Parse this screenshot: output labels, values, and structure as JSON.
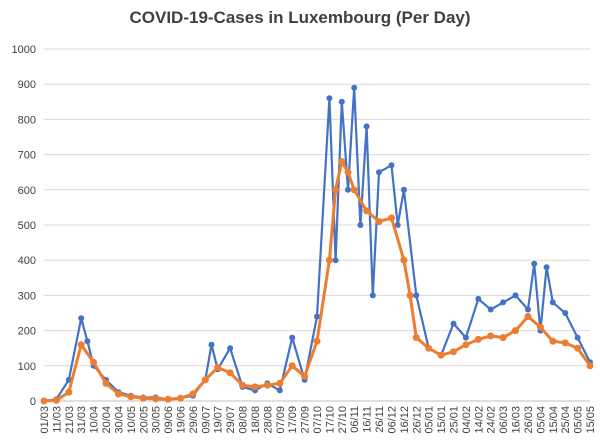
{
  "chart_data": {
    "type": "line",
    "title": "COVID-19-Cases in Luxembourg (Per Day)",
    "xlabel": "",
    "ylabel": "",
    "ylim": [
      0,
      1000
    ],
    "yticks": [
      0,
      100,
      200,
      300,
      400,
      500,
      600,
      700,
      800,
      900,
      1000
    ],
    "grid": true,
    "legend": "none",
    "x_ticks": [
      "01/03",
      "11/03",
      "21/03",
      "31/03",
      "10/04",
      "20/04",
      "30/04",
      "10/05",
      "20/05",
      "30/05",
      "09/06",
      "19/06",
      "29/06",
      "09/07",
      "19/07",
      "29/07",
      "08/08",
      "18/08",
      "28/08",
      "07/09",
      "17/09",
      "27/09",
      "07/10",
      "17/10",
      "27/10",
      "06/11",
      "16/11",
      "26/11",
      "06/12",
      "16/12",
      "26/12",
      "05/01",
      "15/01",
      "25/01",
      "04/02",
      "14/02",
      "24/02",
      "06/03",
      "16/03",
      "26/03",
      "05/04",
      "15/04",
      "25/04",
      "05/05",
      "15/05"
    ],
    "series": [
      {
        "name": "",
        "color": "#4472C4",
        "description": "daily cases (values read at 10-day tick intervals, with notable peaks)",
        "x_index": [
          0,
          1,
          2,
          3,
          3.5,
          4,
          5,
          6,
          7,
          8,
          9,
          10,
          11,
          12,
          13,
          13.5,
          14,
          15,
          16,
          17,
          18,
          19,
          20,
          21,
          22,
          23,
          23.5,
          24,
          24.5,
          25,
          25.5,
          26,
          26.5,
          27,
          28,
          28.5,
          29,
          30,
          31,
          32,
          33,
          34,
          35,
          36,
          37,
          38,
          39,
          39.5,
          40,
          40.5,
          41,
          42,
          43,
          44
        ],
        "values": [
          0,
          5,
          60,
          235,
          170,
          100,
          60,
          25,
          15,
          10,
          10,
          5,
          8,
          15,
          60,
          160,
          90,
          150,
          40,
          30,
          50,
          30,
          180,
          60,
          240,
          860,
          400,
          850,
          600,
          890,
          500,
          780,
          300,
          650,
          670,
          500,
          600,
          300,
          150,
          130,
          220,
          180,
          290,
          260,
          280,
          300,
          260,
          390,
          200,
          380,
          280,
          250,
          180,
          110
        ]
      },
      {
        "name": "",
        "color": "#ED7D31",
        "description": "smoothed average",
        "x_index": [
          0,
          1,
          2,
          3,
          4,
          5,
          6,
          7,
          8,
          9,
          10,
          11,
          12,
          13,
          14,
          15,
          16,
          17,
          18,
          19,
          20,
          21,
          22,
          23,
          23.5,
          24,
          24.5,
          25,
          26,
          27,
          28,
          29,
          29.5,
          30,
          31,
          32,
          33,
          34,
          35,
          36,
          37,
          38,
          39,
          40,
          41,
          42,
          43,
          44
        ],
        "values": [
          0,
          2,
          25,
          160,
          110,
          50,
          20,
          12,
          8,
          6,
          5,
          8,
          20,
          60,
          95,
          80,
          45,
          40,
          45,
          50,
          100,
          70,
          170,
          400,
          600,
          680,
          650,
          600,
          540,
          510,
          520,
          400,
          300,
          180,
          150,
          130,
          140,
          160,
          175,
          185,
          180,
          200,
          240,
          210,
          170,
          165,
          150,
          100
        ]
      }
    ]
  }
}
